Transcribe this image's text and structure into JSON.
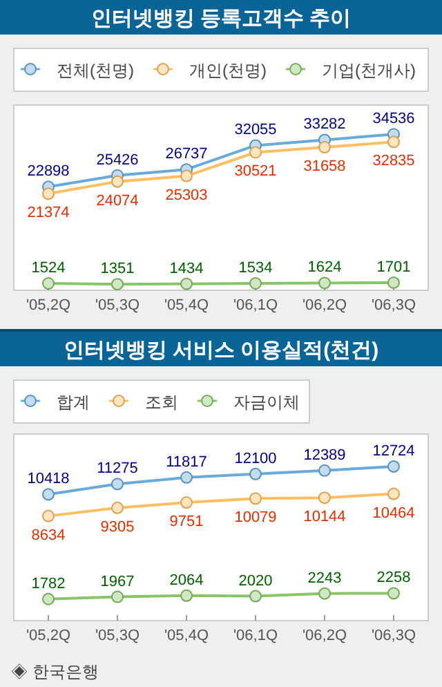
{
  "chart_data": [
    {
      "type": "line",
      "title": "인터넷뱅킹 등록고객수 추이",
      "categories": [
        "'05,2Q",
        "'05,3Q",
        "'05,4Q",
        "'06,1Q",
        "'06,2Q",
        "'06,3Q"
      ],
      "series": [
        {
          "name": "전체(천명)",
          "color": "#6aaad8",
          "values": [
            22898,
            25426,
            26737,
            32055,
            33282,
            34536
          ]
        },
        {
          "name": "개인(천명)",
          "color": "#ffbf60",
          "values": [
            21374,
            24074,
            25303,
            30521,
            31658,
            32835
          ]
        },
        {
          "name": "기업(천개사)",
          "color": "#88c468",
          "values": [
            1524,
            1351,
            1434,
            1534,
            1624,
            1701
          ]
        }
      ],
      "ylim": [
        0,
        41000
      ],
      "tick_labels": "x",
      "data_labels": true,
      "legend": "top",
      "marker": "circle"
    },
    {
      "type": "line",
      "title": "인터넷뱅킹 서비스 이용실적(천건)",
      "categories": [
        "'05,2Q",
        "'05,3Q",
        "'05,4Q",
        "'06,1Q",
        "'06,2Q",
        "'06,3Q"
      ],
      "series": [
        {
          "name": "합계",
          "color": "#6aaad8",
          "values": [
            10418,
            11275,
            11817,
            12100,
            12389,
            12724
          ]
        },
        {
          "name": "조회",
          "color": "#ffbf60",
          "values": [
            8634,
            9305,
            9751,
            10079,
            10144,
            10464
          ]
        },
        {
          "name": "자금이체",
          "color": "#88c468",
          "values": [
            1782,
            1967,
            2064,
            2020,
            2243,
            2258
          ]
        }
      ],
      "ylim": [
        0,
        15400
      ],
      "tick_labels": "x",
      "data_labels": true,
      "legend": "top",
      "marker": "circle",
      "annotations": [
        "◈ 한국은행"
      ]
    }
  ]
}
